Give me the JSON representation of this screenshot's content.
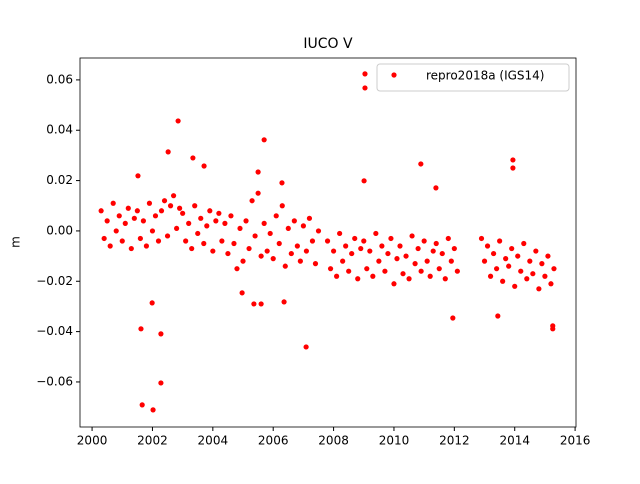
{
  "chart_data": {
    "type": "scatter",
    "title": "IUCO V",
    "ylabel": "m",
    "xlim": [
      1999.6,
      2016.03
    ],
    "ylim": [
      -0.0779,
      0.0687
    ],
    "xticks": [
      2000,
      2002,
      2004,
      2006,
      2008,
      2010,
      2012,
      2014,
      2016
    ],
    "yticks": [
      {
        "value": -0.06,
        "label": "−0.06"
      },
      {
        "value": -0.04,
        "label": "−0.04"
      },
      {
        "value": -0.02,
        "label": "−0.02"
      },
      {
        "value": 0,
        "label": "0.00"
      },
      0.02,
      0.04,
      0.06
    ],
    "legend": "upper right",
    "x": [
      2000.3,
      2000.4,
      2000.5,
      2000.6,
      2000.7,
      2000.8,
      2000.9,
      2001.0,
      2001.1,
      2001.2,
      2001.3,
      2001.4,
      2001.5,
      2001.6,
      2001.7,
      2001.8,
      2001.9,
      2002.0,
      2002.1,
      2002.2,
      2002.3,
      2002.4,
      2002.5,
      2002.6,
      2002.7,
      2002.8,
      2002.9,
      2003.0,
      2003.1,
      2003.2,
      2003.3,
      2003.4,
      2003.5,
      2003.6,
      2003.7,
      2003.8,
      2003.9,
      2004.0,
      2004.1,
      2004.2,
      2004.3,
      2004.4,
      2004.5,
      2004.6,
      2004.7,
      2004.8,
      2004.9,
      2005.0,
      2005.1,
      2005.2,
      2005.3,
      2005.4,
      2005.5,
      2005.6,
      2005.7,
      2005.8,
      2005.9,
      2006.0,
      2006.1,
      2006.2,
      2006.3,
      2006.4,
      2006.5,
      2006.6,
      2006.7,
      2006.8,
      2006.9,
      2007.0,
      2007.1,
      2007.2,
      2007.3,
      2007.4,
      2007.5,
      2007.8,
      2007.9,
      2008.0,
      2008.1,
      2008.2,
      2008.3,
      2008.4,
      2008.5,
      2008.6,
      2008.7,
      2008.8,
      2008.9,
      2009.0,
      2009.1,
      2009.2,
      2009.3,
      2009.4,
      2009.5,
      2009.6,
      2009.7,
      2009.8,
      2009.9,
      2010.0,
      2010.1,
      2010.2,
      2010.3,
      2010.4,
      2010.5,
      2010.6,
      2010.7,
      2010.8,
      2010.9,
      2011.0,
      2011.1,
      2011.2,
      2011.3,
      2011.4,
      2011.5,
      2011.6,
      2011.7,
      2011.8,
      2011.9,
      2012.0,
      2012.1,
      2012.9,
      2013.0,
      2013.1,
      2013.2,
      2013.3,
      2013.4,
      2013.5,
      2013.6,
      2013.7,
      2013.8,
      2013.9,
      2014.0,
      2014.1,
      2014.2,
      2014.3,
      2014.4,
      2014.5,
      2014.6,
      2014.7,
      2014.8,
      2014.9,
      2015.0,
      2015.1,
      2015.2,
      2015.3,
      2009.04,
      2009.04,
      2002.85,
      2005.7,
      2002.52,
      2003.34,
      2010.89,
      2013.94,
      2013.94,
      2001.52,
      2009.01,
      2001.62,
      2002.28,
      2002.28,
      2001.66,
      2002.02,
      2007.09,
      2011.95,
      2013.44,
      2015.26,
      2015.26,
      2001.99,
      2005.36,
      2005.6,
      2006.36,
      2004.97,
      2005.5,
      2006.29,
      2011.39,
      2003.71
    ],
    "series": [
      {
        "name": "repro2018a (IGS14)",
        "color": "#ff0000",
        "values": [
          0.008,
          -0.003,
          0.004,
          -0.006,
          0.011,
          0.0,
          0.006,
          -0.004,
          0.003,
          0.009,
          -0.007,
          0.005,
          0.008,
          -0.003,
          0.004,
          -0.006,
          0.011,
          0.0,
          0.006,
          -0.004,
          0.008,
          0.012,
          -0.002,
          0.01,
          0.014,
          0.001,
          0.009,
          0.007,
          -0.004,
          0.003,
          -0.007,
          0.01,
          -0.001,
          0.005,
          -0.005,
          0.002,
          0.008,
          -0.008,
          0.004,
          0.007,
          -0.004,
          0.003,
          -0.009,
          0.006,
          -0.005,
          -0.015,
          0.001,
          -0.012,
          0.004,
          -0.007,
          0.012,
          -0.002,
          0.015,
          -0.01,
          0.003,
          -0.008,
          -0.001,
          -0.011,
          0.006,
          -0.005,
          0.01,
          -0.014,
          0.001,
          -0.009,
          0.004,
          -0.006,
          -0.012,
          0.002,
          -0.008,
          0.005,
          -0.004,
          -0.013,
          0.0,
          -0.004,
          -0.015,
          -0.008,
          -0.018,
          -0.001,
          -0.012,
          -0.006,
          -0.016,
          -0.009,
          -0.003,
          -0.019,
          -0.007,
          -0.004,
          -0.015,
          -0.008,
          -0.018,
          -0.001,
          -0.012,
          -0.006,
          -0.016,
          -0.009,
          -0.003,
          -0.021,
          -0.011,
          -0.006,
          -0.017,
          -0.01,
          -0.019,
          -0.002,
          -0.013,
          -0.007,
          -0.016,
          -0.004,
          -0.012,
          -0.018,
          -0.008,
          -0.005,
          -0.015,
          -0.009,
          -0.019,
          -0.003,
          -0.012,
          -0.007,
          -0.016,
          -0.003,
          -0.012,
          -0.006,
          -0.018,
          -0.009,
          -0.015,
          -0.004,
          -0.02,
          -0.011,
          -0.014,
          -0.007,
          -0.022,
          -0.01,
          -0.016,
          -0.005,
          -0.019,
          -0.012,
          -0.017,
          -0.008,
          -0.023,
          -0.013,
          -0.018,
          -0.01,
          -0.021,
          -0.015,
          0.0624,
          0.0568,
          0.0437,
          0.0362,
          0.0314,
          0.029,
          0.0266,
          0.0282,
          0.025,
          0.0219,
          0.0199,
          -0.0389,
          -0.0409,
          -0.0604,
          -0.0691,
          -0.0711,
          -0.0461,
          -0.0346,
          -0.0338,
          -0.0377,
          -0.0389,
          -0.0286,
          -0.029,
          -0.029,
          -0.0282,
          -0.0246,
          0.0234,
          0.0191,
          0.0171,
          0.0258
        ]
      }
    ]
  }
}
